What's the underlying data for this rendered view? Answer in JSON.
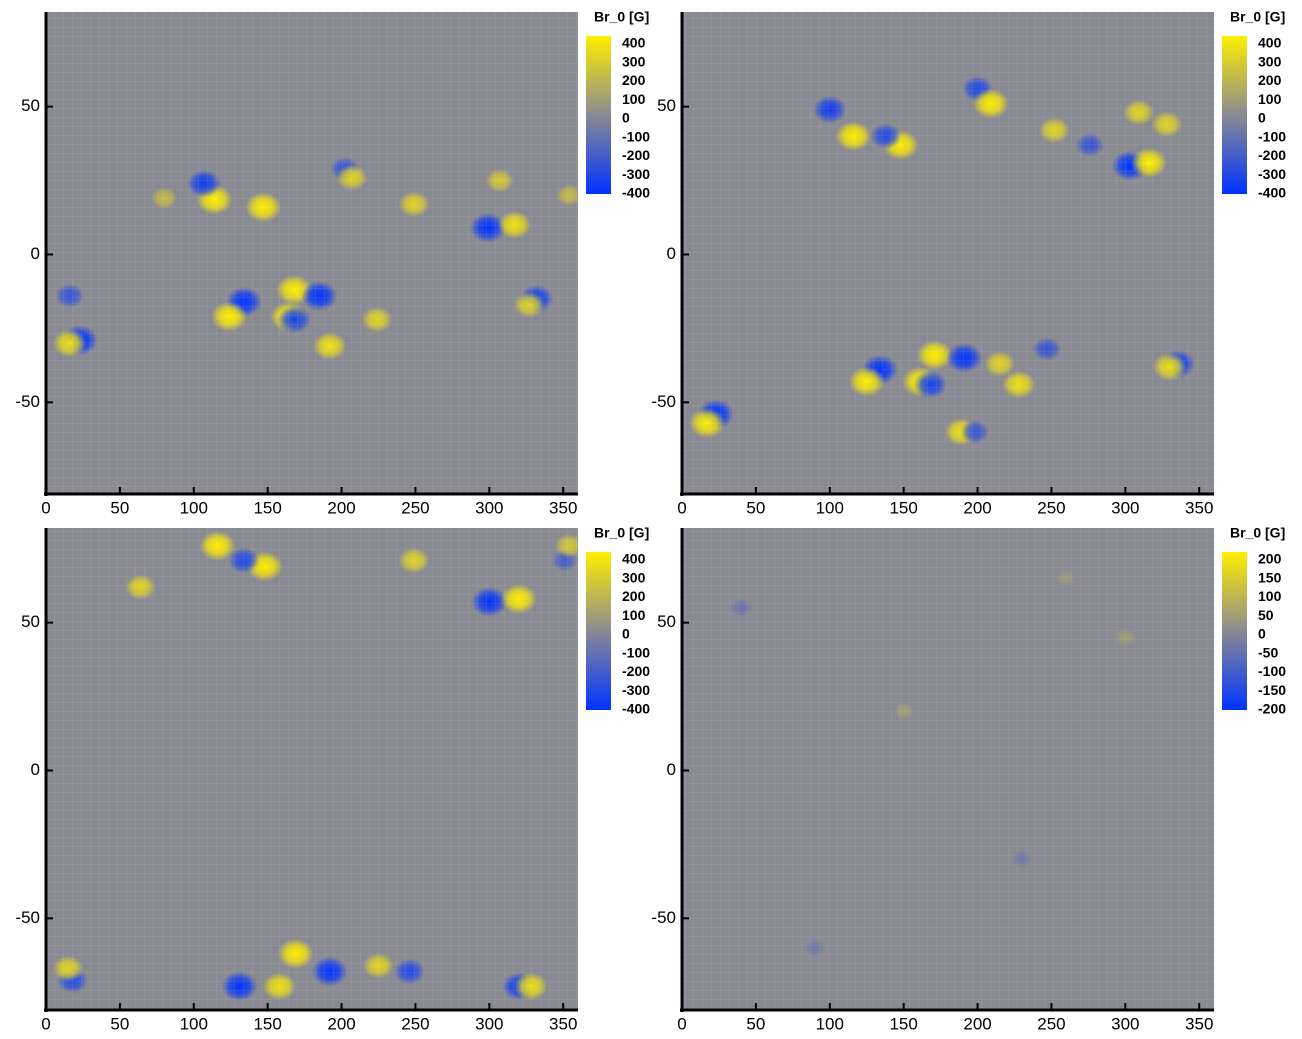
{
  "chart_data": [
    {
      "type": "heatmap",
      "colorbar_label": "Br_0 [G]",
      "xlim": [
        0,
        360
      ],
      "xticks": [
        0,
        50,
        100,
        150,
        200,
        250,
        300,
        350
      ],
      "ylim": [
        -81,
        82
      ],
      "yticks": [
        -50,
        0,
        50
      ],
      "clim": [
        -400,
        400
      ],
      "colorbar_ticks": [
        400,
        300,
        200,
        100,
        0,
        -100,
        -200,
        -300,
        -400
      ],
      "colors": {
        "low": "#0033ff",
        "mid": "#8a8a92",
        "high": "#ffee00"
      },
      "x": [
        114,
        107,
        147,
        202,
        207,
        299,
        317,
        307,
        249,
        354,
        168,
        185,
        134,
        124,
        164,
        168,
        224,
        192,
        23,
        16,
        332,
        327,
        16,
        80
      ],
      "y": [
        18.5,
        24,
        16,
        29,
        26,
        9,
        10,
        25,
        17,
        20,
        -12,
        -14,
        -16,
        -21,
        -21,
        -22,
        -22,
        -31,
        -29,
        -30,
        -15,
        -17,
        -14,
        19
      ],
      "values": [
        400,
        -350,
        400,
        -250,
        300,
        -400,
        350,
        250,
        300,
        200,
        400,
        -400,
        -400,
        400,
        400,
        -350,
        300,
        350,
        -400,
        350,
        -350,
        300,
        -250,
        200
      ]
    },
    {
      "type": "heatmap",
      "colorbar_label": "Br_0 [G]",
      "xlim": [
        0,
        360
      ],
      "xticks": [
        0,
        50,
        100,
        150,
        200,
        250,
        300,
        350
      ],
      "ylim": [
        -81,
        82
      ],
      "yticks": [
        -50,
        0,
        50
      ],
      "clim": [
        -400,
        400
      ],
      "colorbar_ticks": [
        400,
        300,
        200,
        100,
        0,
        -100,
        -200,
        -300,
        -400
      ],
      "colors": {
        "low": "#0033ff",
        "mid": "#8a8a92",
        "high": "#ffee00"
      },
      "x": [
        100,
        116,
        148,
        138,
        200,
        209,
        309,
        303,
        316,
        252,
        276,
        328,
        171,
        191,
        134,
        125,
        161,
        168,
        228,
        215,
        247,
        336,
        330,
        23,
        17,
        189,
        198
      ],
      "y": [
        49,
        40,
        37,
        40,
        56,
        51,
        48,
        30,
        31,
        42,
        37,
        44,
        -34,
        -35,
        -39,
        -43,
        -43,
        -44,
        -44,
        -37,
        -32,
        -37,
        -38,
        -54,
        -57,
        -60,
        -60
      ],
      "values": [
        -350,
        400,
        400,
        -300,
        -300,
        400,
        300,
        -400,
        400,
        300,
        -250,
        300,
        400,
        -400,
        -400,
        400,
        400,
        -350,
        350,
        300,
        -250,
        -350,
        350,
        -400,
        400,
        350,
        -250
      ]
    },
    {
      "type": "heatmap",
      "colorbar_label": "Br_0 [G]",
      "xlim": [
        0,
        360
      ],
      "xticks": [
        0,
        50,
        100,
        150,
        200,
        250,
        300,
        350
      ],
      "ylim": [
        -81,
        82
      ],
      "yticks": [
        -50,
        0,
        50
      ],
      "clim": [
        -400,
        400
      ],
      "colorbar_ticks": [
        400,
        300,
        200,
        100,
        0,
        -100,
        -200,
        -300,
        -400
      ],
      "colors": {
        "low": "#0033ff",
        "mid": "#8a8a92",
        "high": "#ffee00"
      },
      "x": [
        116,
        148,
        134,
        300,
        320,
        249,
        64,
        351,
        354,
        131,
        169,
        192,
        158,
        246,
        320,
        328,
        18,
        15,
        225
      ],
      "y": [
        76,
        69,
        71,
        57,
        58,
        71,
        62,
        71,
        76,
        -73,
        -62,
        -68,
        -73,
        -68,
        -73,
        -73,
        -71,
        -67,
        -66
      ],
      "values": [
        400,
        400,
        -300,
        -400,
        400,
        300,
        300,
        -200,
        250,
        -400,
        400,
        -400,
        350,
        -300,
        -350,
        350,
        -300,
        300,
        300
      ]
    },
    {
      "type": "heatmap",
      "colorbar_label": "Br_0 [G]",
      "xlim": [
        0,
        360
      ],
      "xticks": [
        0,
        50,
        100,
        150,
        200,
        250,
        300,
        350
      ],
      "ylim": [
        -81,
        82
      ],
      "yticks": [
        -50,
        0,
        50
      ],
      "clim": [
        -200,
        200
      ],
      "colorbar_ticks": [
        200,
        150,
        100,
        50,
        0,
        -50,
        -100,
        -150,
        -200
      ],
      "colors": {
        "low": "#0033ff",
        "mid": "#8a8a92",
        "high": "#ffee00"
      },
      "x": [
        40,
        150,
        230,
        300,
        90,
        260
      ],
      "y": [
        55,
        20,
        -30,
        45,
        -60,
        65
      ],
      "values": [
        -50,
        40,
        -40,
        40,
        -40,
        30
      ]
    }
  ]
}
